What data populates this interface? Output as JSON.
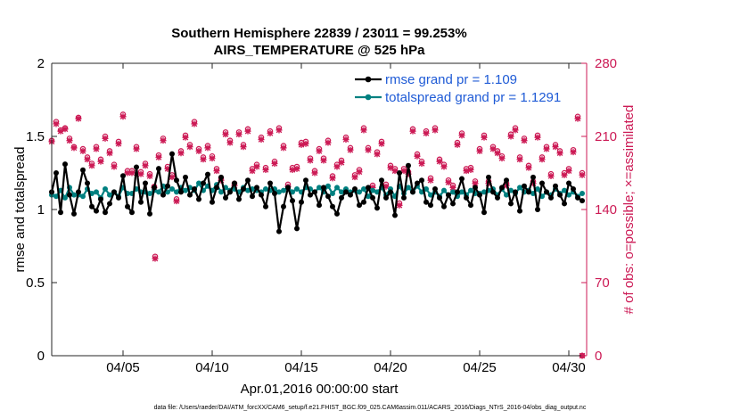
{
  "chart_data": {
    "type": "line",
    "title": "Southern Hemisphere 22839 / 23011 = 99.253%",
    "subtitle": "AIRS_TEMPERATURE @ 525 hPa",
    "xlabel": "Apr.01,2016 00:00:00 start",
    "ylabel": "rmse and totalspread",
    "ylabel_right": "# of obs: o=possible; ×=assimilated",
    "xlim": [
      1,
      31
    ],
    "ylim": [
      0,
      2
    ],
    "ylim_right": [
      0,
      280
    ],
    "xticks": [
      5,
      10,
      15,
      20,
      25,
      30
    ],
    "xtick_labels": [
      "04/05",
      "04/10",
      "04/15",
      "04/20",
      "04/25",
      "04/30"
    ],
    "yticks": [
      0,
      0.5,
      1,
      1.5,
      2
    ],
    "ytick_labels": [
      "0",
      "0.5",
      "1",
      "1.5",
      "2"
    ],
    "yticks_right": [
      0,
      70,
      140,
      210,
      280
    ],
    "ytick_labels_right": [
      "0",
      "70",
      "140",
      "210",
      "280"
    ],
    "legend_position": "top-right",
    "colors": {
      "rmse": "#000000",
      "spread": "#008080",
      "obs": "#cc1a55"
    },
    "x": [
      1.0,
      1.25,
      1.5,
      1.75,
      2.0,
      2.25,
      2.5,
      2.75,
      3.0,
      3.25,
      3.5,
      3.75,
      4.0,
      4.25,
      4.5,
      4.75,
      5.0,
      5.25,
      5.5,
      5.75,
      6.0,
      6.25,
      6.5,
      6.75,
      7.0,
      7.25,
      7.5,
      7.75,
      8.0,
      8.25,
      8.5,
      8.75,
      9.0,
      9.25,
      9.5,
      9.75,
      10.0,
      10.25,
      10.5,
      10.75,
      11.0,
      11.25,
      11.5,
      11.75,
      12.0,
      12.25,
      12.5,
      12.75,
      13.0,
      13.25,
      13.5,
      13.75,
      14.0,
      14.25,
      14.5,
      14.75,
      15.0,
      15.25,
      15.5,
      15.75,
      16.0,
      16.25,
      16.5,
      16.75,
      17.0,
      17.25,
      17.5,
      17.75,
      18.0,
      18.25,
      18.5,
      18.75,
      19.0,
      19.25,
      19.5,
      19.75,
      20.0,
      20.25,
      20.5,
      20.75,
      21.0,
      21.25,
      21.5,
      21.75,
      22.0,
      22.25,
      22.5,
      22.75,
      23.0,
      23.25,
      23.5,
      23.75,
      24.0,
      24.25,
      24.5,
      24.75,
      25.0,
      25.25,
      25.5,
      25.75,
      26.0,
      26.25,
      26.5,
      26.75,
      27.0,
      27.25,
      27.5,
      27.75,
      28.0,
      28.25,
      28.5,
      28.75,
      29.0,
      29.25,
      29.5,
      29.75,
      30.0,
      30.25,
      30.5,
      30.75
    ],
    "series": [
      {
        "name": "rmse grand pr = 1.109",
        "values": [
          1.12,
          1.25,
          0.98,
          1.31,
          1.1,
          0.97,
          1.12,
          1.27,
          1.18,
          1.02,
          0.99,
          1.07,
          0.98,
          1.04,
          1.12,
          1.08,
          1.23,
          1.02,
          0.98,
          1.29,
          1.05,
          1.18,
          0.97,
          1.15,
          1.28,
          1.1,
          1.16,
          1.38,
          1.2,
          1.12,
          1.22,
          1.1,
          1.14,
          1.07,
          1.18,
          1.24,
          1.05,
          1.15,
          1.22,
          1.08,
          1.12,
          1.18,
          1.07,
          1.14,
          1.2,
          1.09,
          1.15,
          1.1,
          1.02,
          1.18,
          1.11,
          0.85,
          1.02,
          1.15,
          1.06,
          0.87,
          1.05,
          1.2,
          1.1,
          1.12,
          1.03,
          1.15,
          1.09,
          1.02,
          0.97,
          1.08,
          1.12,
          1.1,
          1.14,
          1.03,
          1.05,
          1.15,
          1.08,
          1.01,
          1.2,
          1.08,
          1.12,
          0.96,
          1.25,
          1.08,
          1.3,
          1.12,
          1.18,
          1.2,
          1.05,
          1.03,
          1.14,
          1.08,
          1.02,
          1.1,
          1.04,
          1.12,
          1.21,
          1.08,
          1.03,
          1.15,
          1.1,
          0.98,
          1.22,
          1.12,
          1.08,
          1.15,
          1.2,
          1.04,
          1.12,
          0.99,
          1.16,
          1.12,
          1.22,
          1.0,
          1.18,
          1.12,
          1.08,
          1.16,
          1.1,
          1.04,
          1.18,
          1.14,
          1.08,
          1.06
        ]
      },
      {
        "name": "totalspread grand pr = 1.1291",
        "values": [
          1.1,
          1.09,
          1.13,
          1.08,
          1.15,
          1.1,
          1.1,
          1.09,
          1.14,
          1.11,
          1.12,
          1.08,
          1.14,
          1.1,
          1.12,
          1.09,
          1.15,
          1.11,
          1.11,
          1.14,
          1.12,
          1.12,
          1.11,
          1.13,
          1.12,
          1.16,
          1.12,
          1.14,
          1.12,
          1.15,
          1.13,
          1.15,
          1.13,
          1.18,
          1.13,
          1.16,
          1.13,
          1.17,
          1.12,
          1.15,
          1.13,
          1.14,
          1.12,
          1.15,
          1.13,
          1.14,
          1.13,
          1.12,
          1.14,
          1.13,
          1.14,
          1.12,
          1.13,
          1.15,
          1.12,
          1.14,
          1.12,
          1.15,
          1.14,
          1.12,
          1.15,
          1.12,
          1.16,
          1.11,
          1.15,
          1.12,
          1.14,
          1.12,
          1.13,
          1.12,
          1.14,
          1.09,
          1.13,
          1.12,
          1.15,
          1.1,
          1.14,
          1.09,
          1.16,
          1.11,
          1.15,
          1.12,
          1.16,
          1.12,
          1.14,
          1.1,
          1.12,
          1.09,
          1.13,
          1.1,
          1.12,
          1.09,
          1.12,
          1.1,
          1.13,
          1.11,
          1.11,
          1.12,
          1.13,
          1.14,
          1.1,
          1.14,
          1.1,
          1.13,
          1.11,
          1.15,
          1.12,
          1.13,
          1.11,
          1.14,
          1.09,
          1.12,
          1.1,
          1.14,
          1.11,
          1.13,
          1.1,
          1.12,
          1.09,
          1.11
        ]
      },
      {
        "name": "# of obs possible",
        "values": [
          206,
          224,
          216,
          218,
          208,
          200,
          228,
          198,
          190,
          184,
          200,
          188,
          210,
          196,
          183,
          205,
          231,
          177,
          177,
          200,
          176,
          184,
          174,
          162,
          192,
          208,
          181,
          173,
          150,
          196,
          211,
          202,
          224,
          198,
          190,
          201,
          191,
          179,
          170,
          214,
          206,
          165,
          214,
          202,
          217,
          179,
          183,
          209,
          180,
          215,
          186,
          218,
          201,
          164,
          180,
          181,
          204,
          205,
          189,
          177,
          198,
          189,
          206,
          172,
          183,
          187,
          209,
          199,
          173,
          178,
          218,
          199,
          163,
          195,
          205,
          164,
          182,
          179,
          146,
          179,
          176,
          217,
          193,
          186,
          215,
          170,
          218,
          188,
          183,
          168,
          163,
          204,
          213,
          179,
          180,
          167,
          198,
          211,
          167,
          200,
          196,
          191,
          165,
          212,
          218,
          190,
          208,
          182,
          167,
          211,
          190,
          200,
          174,
          202,
          196,
          175,
          179,
          197,
          229,
          175
        ]
      },
      {
        "name": "# of obs assimilated",
        "values": [
          205,
          222,
          215,
          217,
          206,
          199,
          227,
          196,
          188,
          182,
          198,
          186,
          208,
          194,
          181,
          203,
          229,
          175,
          175,
          198,
          174,
          182,
          172,
          161,
          190,
          206,
          179,
          171,
          148,
          194,
          209,
          200,
          222,
          196,
          188,
          199,
          189,
          177,
          168,
          212,
          204,
          163,
          212,
          200,
          215,
          177,
          181,
          207,
          178,
          213,
          184,
          216,
          199,
          162,
          178,
          179,
          202,
          203,
          187,
          175,
          196,
          187,
          204,
          170,
          181,
          185,
          207,
          197,
          171,
          176,
          216,
          197,
          161,
          193,
          203,
          162,
          180,
          177,
          144,
          177,
          174,
          215,
          191,
          184,
          213,
          168,
          216,
          186,
          181,
          166,
          161,
          202,
          211,
          177,
          178,
          165,
          196,
          209,
          165,
          198,
          194,
          189,
          163,
          210,
          216,
          188,
          206,
          180,
          165,
          209,
          188,
          198,
          172,
          200,
          194,
          173,
          177,
          195,
          227,
          173
        ]
      }
    ],
    "obs_outliers": [
      {
        "x": 6.8,
        "possible": 95,
        "assimilated": 93
      },
      {
        "x": 30.75,
        "possible": 0,
        "assimilated": 0
      }
    ]
  },
  "footer": "data file: /Users/raeder/DAI/ATM_forcXX/CAM6_setup/f.e21.FHIST_BGC.f09_025.CAM6assim.011/ACARS_2016/Diags_NTrS_2016-04/obs_diag_output.nc"
}
